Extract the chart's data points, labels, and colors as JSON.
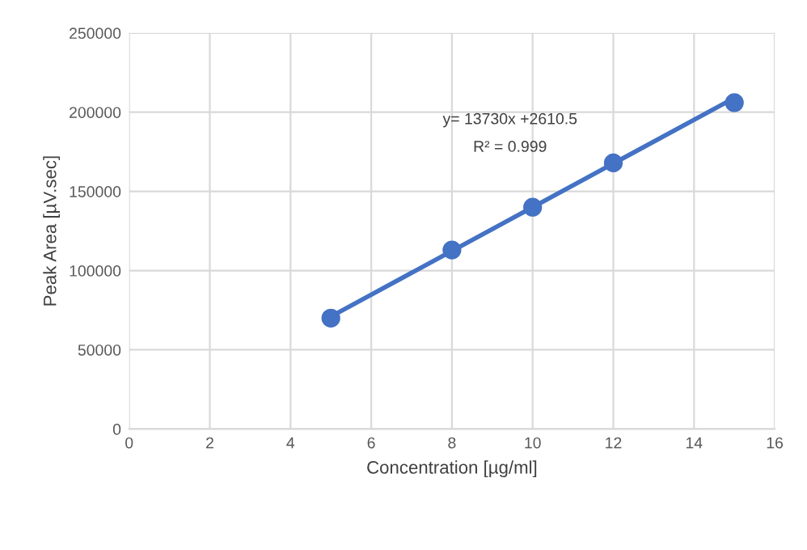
{
  "chart_data": {
    "type": "scatter",
    "xlabel": "Concentration [µg/ml]",
    "ylabel": "Peak Area [µV.sec]",
    "series": [
      {
        "color": "#4472c4",
        "x": [
          5,
          8,
          10,
          12,
          15
        ],
        "values": [
          70000,
          113000,
          140000,
          168000,
          206000
        ],
        "marker": "circle"
      },
      {
        "type": "line",
        "color": "#4472c4",
        "x": [
          5,
          15
        ],
        "values": [
          71000,
          209000
        ],
        "marker": "none"
      }
    ],
    "annotations": [
      "y= 13730x +2610.5",
      "R² = 0.999"
    ],
    "xlim": [
      0,
      16
    ],
    "xticks": [
      0,
      2,
      4,
      6,
      8,
      10,
      12,
      14,
      16
    ],
    "ylim": [
      0,
      250000
    ],
    "yticks": [
      0,
      50000,
      100000,
      150000,
      200000,
      250000
    ],
    "grid": true
  }
}
